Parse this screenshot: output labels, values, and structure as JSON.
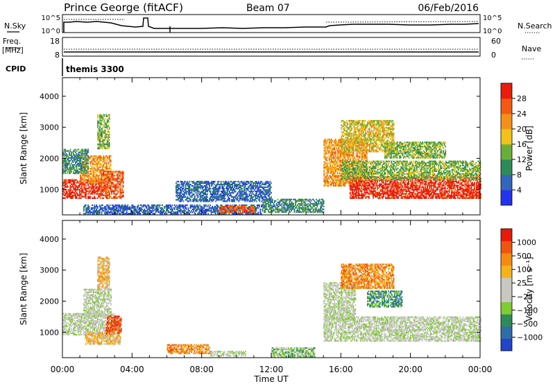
{
  "header": {
    "station": "Prince George (fitACF)",
    "beam": "Beam 07",
    "date": "06/Feb/2016"
  },
  "top_panels": {
    "nsky_label": "N.Sky",
    "nsearch_label": "N.Search",
    "nsky_ticks": [
      "10^5",
      "10^0"
    ],
    "nsearch_ticks": [
      "10^5",
      "10^0"
    ],
    "freq_label": "Freq.",
    "freq_unit": "[MHz]",
    "freq_ticks": [
      "18",
      "8"
    ],
    "nave_label": "Nave",
    "nave_ticks": [
      "60",
      "0"
    ],
    "cpid_label": "CPID",
    "cpid_value": "themis 3300"
  },
  "chart_data": [
    {
      "type": "heatmap",
      "parameter": "power",
      "ylabel": "Slant Range [km]",
      "yticks": [
        "1000",
        "2000",
        "3000",
        "4000"
      ],
      "ylim": [
        180,
        4600
      ],
      "xlim": [
        0,
        24
      ],
      "colorbar_label": "Power [dB]",
      "colorbar_ticks": [
        "4",
        "8",
        "12",
        "16",
        "20",
        "24",
        "28"
      ],
      "colorbar_colors": [
        "#2233ee",
        "#3366bb",
        "#2e8b57",
        "#6aae3a",
        "#f2c21a",
        "#f39118",
        "#f25a12",
        "#ea1c0c"
      ],
      "regions": [
        {
          "t0": 0.0,
          "t1": 2.2,
          "r0": 700,
          "r1": 1300,
          "level": 7
        },
        {
          "t0": 1.0,
          "t1": 2.8,
          "r0": 1200,
          "r1": 2100,
          "level": 5
        },
        {
          "t0": 2.2,
          "t1": 3.5,
          "r0": 700,
          "r1": 1600,
          "level": 6
        },
        {
          "t0": 0.0,
          "t1": 1.5,
          "r0": 1500,
          "r1": 2300,
          "level": 2
        },
        {
          "t0": 2.0,
          "t1": 2.7,
          "r0": 2300,
          "r1": 3400,
          "level": 3
        },
        {
          "t0": 1.2,
          "t1": 11.5,
          "r0": 200,
          "r1": 500,
          "level": 1
        },
        {
          "t0": 6.5,
          "t1": 12.0,
          "r0": 600,
          "r1": 1250,
          "level": 1
        },
        {
          "t0": 9.0,
          "t1": 11.0,
          "r0": 250,
          "r1": 450,
          "level": 6
        },
        {
          "t0": 11.5,
          "t1": 15.0,
          "r0": 250,
          "r1": 700,
          "level": 2
        },
        {
          "t0": 15.0,
          "t1": 17.5,
          "r0": 1100,
          "r1": 2600,
          "level": 5
        },
        {
          "t0": 16.5,
          "t1": 24.0,
          "r0": 700,
          "r1": 1400,
          "level": 7
        },
        {
          "t0": 16.0,
          "t1": 24.0,
          "r0": 1300,
          "r1": 1900,
          "level": 3
        },
        {
          "t0": 16.0,
          "t1": 19.0,
          "r0": 2200,
          "r1": 3200,
          "level": 4
        },
        {
          "t0": 18.5,
          "t1": 22.0,
          "r0": 2000,
          "r1": 2500,
          "level": 3
        }
      ]
    },
    {
      "type": "heatmap",
      "parameter": "velocity",
      "ylabel": "Slant Range [km]",
      "yticks": [
        "1000",
        "2000",
        "3000",
        "4000"
      ],
      "ylim": [
        180,
        4600
      ],
      "xlim": [
        0,
        24
      ],
      "xticks": [
        "00:00",
        "04:00",
        "08:00",
        "12:00",
        "16:00",
        "20:00",
        "00:00"
      ],
      "xlabel": "Time UT",
      "colorbar_label": "Velocity [m s⁻¹]",
      "colorbar_ticks": [
        "1000",
        "500",
        "100",
        "25",
        "−25",
        "−100",
        "−500",
        "−1000"
      ],
      "colorbar_colors": [
        "#2244cc",
        "#2e6ea8",
        "#2e8b57",
        "#7fcc33",
        "#c8c8c0",
        "#c8c8c0",
        "#f5b21a",
        "#f58a12",
        "#ee5510",
        "#e81a0a"
      ],
      "regions": [
        {
          "t0": 0.0,
          "t1": 3.0,
          "r0": 900,
          "r1": 1600,
          "level": 4
        },
        {
          "t0": 1.2,
          "t1": 2.8,
          "r0": 1500,
          "r1": 2400,
          "level": 4
        },
        {
          "t0": 1.3,
          "t1": 3.3,
          "r0": 600,
          "r1": 1000,
          "level": 6
        },
        {
          "t0": 2.5,
          "t1": 3.4,
          "r0": 950,
          "r1": 1500,
          "level": 8
        },
        {
          "t0": 2.0,
          "t1": 2.7,
          "r0": 2400,
          "r1": 3400,
          "level": 6
        },
        {
          "t0": 6.0,
          "t1": 8.5,
          "r0": 300,
          "r1": 600,
          "level": 7
        },
        {
          "t0": 8.5,
          "t1": 10.5,
          "r0": 220,
          "r1": 400,
          "level": 4
        },
        {
          "t0": 12.0,
          "t1": 14.5,
          "r0": 200,
          "r1": 500,
          "level": 3
        },
        {
          "t0": 15.0,
          "t1": 24.0,
          "r0": 700,
          "r1": 1500,
          "level": 4
        },
        {
          "t0": 15.0,
          "t1": 16.8,
          "r0": 1400,
          "r1": 2600,
          "level": 4
        },
        {
          "t0": 16.0,
          "t1": 19.0,
          "r0": 2400,
          "r1": 3200,
          "level": 7
        },
        {
          "t0": 17.5,
          "t1": 19.5,
          "r0": 1800,
          "r1": 2300,
          "level": 2
        }
      ]
    }
  ]
}
